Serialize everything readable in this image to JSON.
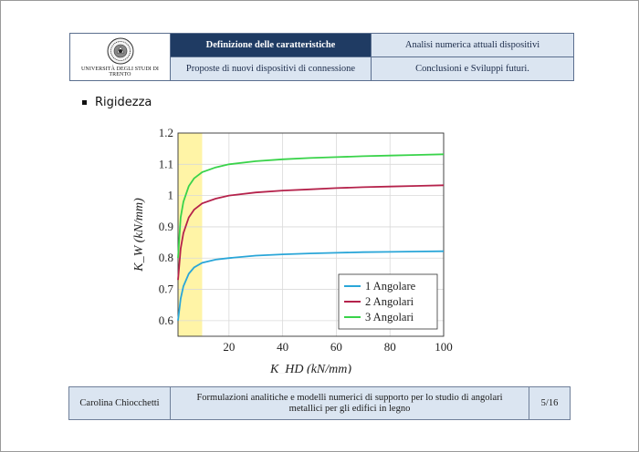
{
  "header": {
    "logo_text": "UNIVERSITÀ DEGLI STUDI DI TRENTO",
    "nav": [
      {
        "label": "Definizione delle caratteristiche",
        "active": true
      },
      {
        "label": "Analisi numerica attuali dispositivi",
        "active": false
      },
      {
        "label": "Proposte di nuovi dispositivi di connessione",
        "active": false
      },
      {
        "label": "Conclusioni e Sviluppi futuri.",
        "active": false
      }
    ]
  },
  "content": {
    "bullet": "Rigidezza"
  },
  "chart_data": {
    "type": "line",
    "xlabel": "K_HD (kN/mm)",
    "ylabel": "K_W (kN/mm)",
    "xlim": [
      1,
      100
    ],
    "ylim": [
      0.55,
      1.2
    ],
    "xticks": [
      "20",
      "40",
      "60",
      "80",
      "100"
    ],
    "yticks": [
      "0.6",
      "0.7",
      "0.8",
      "0.9",
      "1",
      "1.1",
      "1.2"
    ],
    "grid": true,
    "legend_position": "bottom-right",
    "highlight_band": {
      "x0": 1,
      "x1": 10,
      "color": "#fff4a6"
    },
    "x": [
      1,
      2,
      3,
      5,
      7,
      10,
      15,
      20,
      30,
      40,
      50,
      60,
      70,
      80,
      90,
      100
    ],
    "series": [
      {
        "name": "1 Angolare",
        "color": "#2aa6d8",
        "values": [
          0.6,
          0.67,
          0.71,
          0.75,
          0.77,
          0.785,
          0.795,
          0.8,
          0.808,
          0.812,
          0.815,
          0.817,
          0.819,
          0.82,
          0.821,
          0.822
        ]
      },
      {
        "name": "2 Angolari",
        "color": "#b5224b",
        "values": [
          0.73,
          0.83,
          0.88,
          0.93,
          0.955,
          0.975,
          0.99,
          1.0,
          1.01,
          1.016,
          1.02,
          1.024,
          1.027,
          1.029,
          1.031,
          1.033
        ]
      },
      {
        "name": "3 Angolari",
        "color": "#39d34a",
        "values": [
          0.8,
          0.93,
          0.98,
          1.03,
          1.055,
          1.075,
          1.09,
          1.1,
          1.11,
          1.116,
          1.12,
          1.123,
          1.126,
          1.128,
          1.13,
          1.132
        ]
      }
    ]
  },
  "footer": {
    "author": "Carolina Chiocchetti",
    "title": "Formulazioni analitiche e modelli numerici di supporto per lo studio di angolari metallici per gli edifici in legno",
    "page": "5/16"
  }
}
